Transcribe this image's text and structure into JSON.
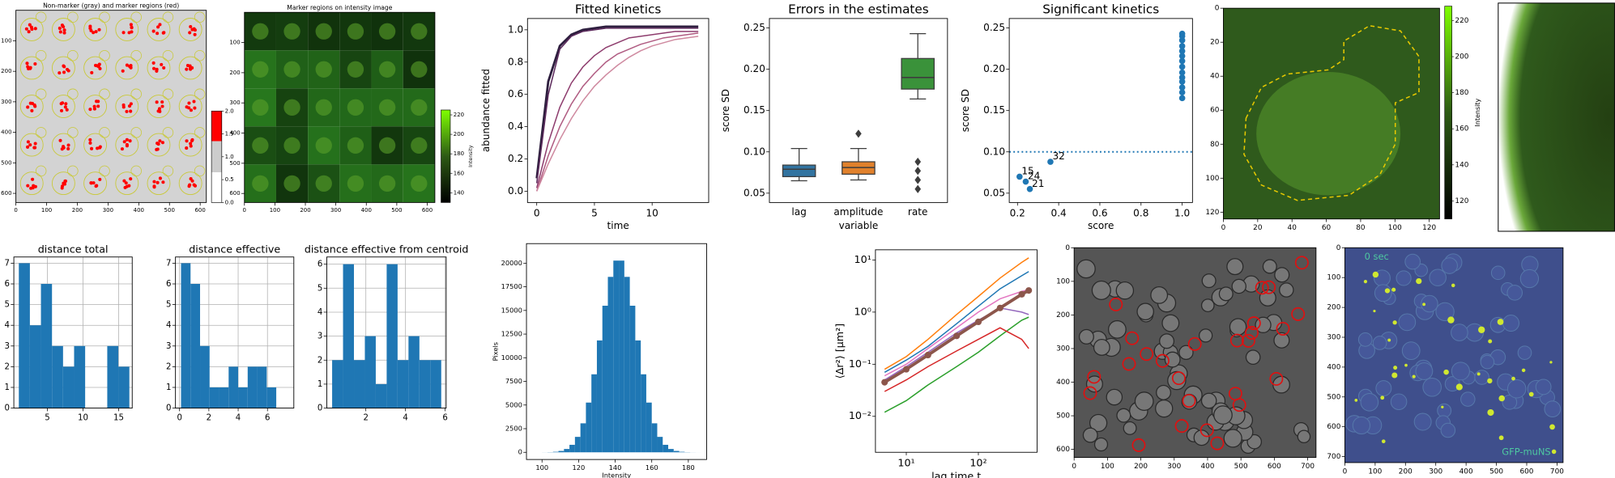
{
  "chart_data": [
    {
      "type": "image",
      "title": "Non-marker (gray) and marker regions (red)",
      "xlim": [
        0,
        620
      ],
      "ylim": [
        630,
        0
      ],
      "xticks": [
        0,
        100,
        200,
        300,
        400,
        500,
        600
      ],
      "yticks": [
        100,
        200,
        300,
        400,
        500,
        600
      ],
      "colorbar": {
        "ylim": [
          0,
          2
        ],
        "yticks": [
          {
            "value": 0,
            "label": "0.0"
          },
          0.5,
          {
            "value": 1,
            "label": "1.0"
          },
          1.5,
          {
            "value": 2,
            "label": "2.0"
          }
        ]
      }
    },
    {
      "type": "image",
      "title": "Marker regions on intensity image",
      "xlim": [
        0,
        625
      ],
      "ylim": [
        630,
        0
      ],
      "xticks": [
        0,
        100,
        200,
        300,
        400,
        500,
        600
      ],
      "yticks": [
        100,
        200,
        300,
        400,
        500,
        600
      ],
      "colorbar": {
        "label": "Intensity",
        "ylim": [
          130,
          225
        ],
        "yticks": [
          140,
          160,
          180,
          200,
          220
        ]
      }
    },
    {
      "type": "line",
      "title": "Fitted kinetics",
      "xlabel": "time",
      "ylabel": "abundance fitted",
      "xlim": [
        -0.8,
        14.9
      ],
      "ylim": [
        -0.07,
        1.07
      ],
      "xticks": [
        0,
        5,
        10
      ],
      "yticks": [
        {
          "value": 0,
          "label": "0.0"
        },
        0.2,
        0.4,
        0.6,
        0.8,
        {
          "value": 1,
          "label": "1.0"
        }
      ],
      "x": [
        0,
        1,
        2,
        3,
        4,
        5,
        6,
        7,
        8,
        9,
        10,
        11,
        12,
        13,
        14
      ],
      "series": [
        {
          "color": "#2d1e3e",
          "values": [
            0.08,
            0.68,
            0.9,
            0.97,
            1.0,
            1.01,
            1.02,
            1.02,
            1.02,
            1.02,
            1.02,
            1.02,
            1.02,
            1.02,
            1.02
          ]
        },
        {
          "color": "#5c2a5c",
          "values": [
            0.05,
            0.6,
            0.88,
            0.96,
            0.99,
            1.0,
            1.01,
            1.01,
            1.01,
            1.01,
            1.01,
            1.01,
            1.01,
            1.01,
            1.01
          ]
        },
        {
          "color": "#8e3d6e",
          "values": [
            0.02,
            0.3,
            0.52,
            0.67,
            0.77,
            0.84,
            0.89,
            0.92,
            0.95,
            0.96,
            0.97,
            0.98,
            0.99,
            0.99,
            0.99
          ]
        },
        {
          "color": "#b05c82",
          "values": [
            0.0,
            0.22,
            0.4,
            0.54,
            0.65,
            0.73,
            0.8,
            0.85,
            0.88,
            0.91,
            0.93,
            0.95,
            0.96,
            0.97,
            0.98
          ]
        },
        {
          "color": "#cf8aa0",
          "values": [
            0.0,
            0.17,
            0.32,
            0.45,
            0.56,
            0.65,
            0.72,
            0.78,
            0.83,
            0.87,
            0.9,
            0.92,
            0.94,
            0.95,
            0.96
          ]
        }
      ]
    },
    {
      "type": "box",
      "title": "Errors in the estimates",
      "xlabel": "variable",
      "ylabel": "score SD",
      "ylim": [
        0.0387,
        0.2614
      ],
      "yticks": [
        0.05,
        {
          "value": 0.1,
          "label": "0.10"
        },
        0.15,
        {
          "value": 0.2,
          "label": "0.20"
        },
        0.25
      ],
      "categories": [
        "lag",
        "amplitude",
        "rate"
      ],
      "colors": [
        "#3274a1",
        "#e1812c",
        "#3a923a"
      ],
      "boxes": [
        {
          "whislo": 0.065,
          "q1": 0.07,
          "med": 0.079,
          "q3": 0.084,
          "whishi": 0.104,
          "fliers": []
        },
        {
          "whislo": 0.066,
          "q1": 0.073,
          "med": 0.081,
          "q3": 0.088,
          "whishi": 0.104,
          "fliers": [
            0.122
          ]
        },
        {
          "whislo": 0.164,
          "q1": 0.176,
          "med": 0.19,
          "q3": 0.213,
          "whishi": 0.243,
          "fliers": [
            0.088,
            0.077,
            0.066,
            0.055
          ]
        }
      ]
    },
    {
      "type": "scatter",
      "title": "Significant kinetics",
      "xlabel": "score",
      "ylabel": "score SD",
      "xlim": [
        0.16,
        1.05
      ],
      "ylim": [
        0.0387,
        0.2614
      ],
      "xticks": [
        0.2,
        0.4,
        0.6,
        0.8,
        {
          "value": 1,
          "label": "1.0"
        }
      ],
      "yticks": [
        0.05,
        {
          "value": 0.1,
          "label": "0.10"
        },
        0.15,
        {
          "value": 0.2,
          "label": "0.20"
        },
        0.25
      ],
      "color": "#1f77b4",
      "hline": 0.1,
      "x": [
        0.21,
        0.24,
        0.26,
        0.36,
        1,
        1,
        1,
        1,
        1,
        1,
        1,
        1,
        1,
        1,
        1,
        1,
        1,
        1
      ],
      "y": [
        0.07,
        0.064,
        0.055,
        0.088,
        0.165,
        0.172,
        0.178,
        0.185,
        0.19,
        0.196,
        0.203,
        0.21,
        0.216,
        0.222,
        0.228,
        0.235,
        0.24,
        0.243
      ],
      "point_labels": [
        "15",
        "24",
        "21",
        "32",
        null,
        null,
        null,
        null,
        null,
        null,
        null,
        null,
        null,
        null,
        null,
        null,
        null,
        null
      ]
    },
    {
      "type": "image",
      "xlim": [
        0,
        126
      ],
      "ylim": [
        124,
        0
      ],
      "xticks": [
        0,
        20,
        40,
        60,
        80,
        100,
        120
      ],
      "yticks": [
        0,
        20,
        40,
        60,
        80,
        100,
        120
      ],
      "colorbar": {
        "label": "Intensity",
        "ylim": [
          110,
          228
        ],
        "yticks": [
          120,
          140,
          160,
          180,
          200,
          220
        ]
      }
    },
    {
      "type": "hist",
      "title": "distance total",
      "grid": true,
      "color": "#1f77b4",
      "xlim": [
        0.3,
        16.9
      ],
      "ylim": [
        0,
        7.3
      ],
      "xticks": [
        5,
        10,
        15
      ],
      "yticks": [
        0,
        1,
        2,
        3,
        4,
        5,
        6,
        7
      ],
      "bins": [
        1,
        2.55,
        4.1,
        5.65,
        7.2,
        8.75,
        10.3,
        11.85,
        13.4,
        14.95,
        16.5
      ],
      "counts": [
        7,
        4,
        6,
        3,
        2,
        3,
        0,
        0,
        3,
        2
      ]
    },
    {
      "type": "hist",
      "title": "distance effective",
      "grid": true,
      "color": "#1f77b4",
      "xlim": [
        -0.28,
        7.8
      ],
      "ylim": [
        0,
        7.3
      ],
      "xticks": [
        0,
        2,
        4,
        6
      ],
      "yticks": [
        0,
        1,
        2,
        3,
        4,
        5,
        6,
        7
      ],
      "bins": [
        0.1,
        0.75,
        1.4,
        2.05,
        2.7,
        3.35,
        4.0,
        4.65,
        5.3,
        5.95,
        6.6
      ],
      "counts": [
        7,
        6,
        3,
        1,
        1,
        2,
        1,
        2,
        2,
        1
      ]
    },
    {
      "type": "hist",
      "title": "distance effective from centroid",
      "grid": true,
      "color": "#1f77b4",
      "xlim": [
        0.03,
        6.05
      ],
      "ylim": [
        0,
        6.3
      ],
      "xticks": [
        2,
        4,
        6
      ],
      "yticks": [
        0,
        1,
        2,
        3,
        4,
        5,
        6
      ],
      "bins": [
        0.3,
        0.85,
        1.4,
        1.95,
        2.5,
        3.05,
        3.6,
        4.15,
        4.7,
        5.25,
        5.8
      ],
      "counts": [
        2,
        6,
        2,
        3,
        1,
        6,
        2,
        3,
        2,
        2
      ]
    },
    {
      "type": "hist",
      "xlabel": "Intensity",
      "ylabel": "Pixels",
      "color": "#1f77b4",
      "xlim": [
        91.5,
        190
      ],
      "ylim": [
        -760,
        22065
      ],
      "xticks": [
        100,
        120,
        140,
        160,
        180
      ],
      "yticks": [
        0,
        2500,
        5000,
        7500,
        10000,
        12500,
        15000,
        17500,
        20000
      ],
      "bins": [
        100,
        103,
        106,
        109,
        112,
        115,
        118,
        121,
        124,
        127,
        130,
        133,
        136,
        139,
        142,
        145,
        148,
        151,
        154,
        157,
        160,
        163,
        166,
        169,
        172,
        175,
        178,
        181,
        184,
        187
      ],
      "counts": [
        6,
        18,
        53,
        144,
        353,
        794,
        1632,
        3065,
        5259,
        8249,
        11830,
        15500,
        18550,
        20270,
        20270,
        18550,
        15500,
        11830,
        8249,
        5259,
        3065,
        1632,
        794,
        353,
        144,
        53,
        18,
        6,
        2
      ]
    },
    {
      "type": "line",
      "xlabel": "lag time t",
      "ylabel": "⟨Δr²⟩ [μm²]",
      "xlog": true,
      "ylog": true,
      "xlim": [
        3.73,
        652
      ],
      "ylim": [
        0.00204,
        15.7
      ],
      "xticks": [
        {
          "value": 10,
          "label": "10¹"
        },
        {
          "value": 100,
          "label": "10²"
        }
      ],
      "yticks": [
        {
          "value": 0.01,
          "label": "10⁻²"
        },
        {
          "value": 0.1,
          "label": "10⁻¹"
        },
        {
          "value": 1,
          "label": "10⁰"
        },
        {
          "value": 10,
          "label": "10¹"
        }
      ],
      "x": [
        5,
        10,
        20,
        50,
        100,
        200,
        400,
        500
      ],
      "series": [
        {
          "color": "#ff7f0e",
          "values": [
            0.08,
            0.14,
            0.3,
            0.9,
            2.0,
            4.5,
            9,
            11
          ]
        },
        {
          "color": "#1f77b4",
          "values": [
            0.07,
            0.12,
            0.22,
            0.6,
            1.3,
            2.8,
            5,
            6
          ]
        },
        {
          "color": "#2ca02c",
          "values": [
            0.012,
            0.02,
            0.04,
            0.09,
            0.17,
            0.35,
            0.7,
            0.8
          ]
        },
        {
          "color": "#d62728",
          "values": [
            0.03,
            0.05,
            0.09,
            0.18,
            0.3,
            0.5,
            0.3,
            0.2
          ]
        },
        {
          "color": "#9467bd",
          "values": [
            0.05,
            0.09,
            0.17,
            0.4,
            0.7,
            1.2,
            1.0,
            0.9
          ]
        },
        {
          "color": "#e377c2",
          "values": [
            0.06,
            0.1,
            0.2,
            0.5,
            1.0,
            1.8,
            2.5,
            2.7
          ]
        },
        {
          "color": "#8c564b",
          "markers": true,
          "values": [
            0.045,
            0.08,
            0.15,
            0.35,
            0.65,
            1.2,
            2.2,
            2.6
          ]
        }
      ]
    },
    {
      "type": "image",
      "xlim": [
        0,
        725
      ],
      "ylim": [
        624,
        0
      ],
      "xticks": [
        0,
        100,
        200,
        300,
        400,
        500,
        600,
        700
      ],
      "yticks": [
        0,
        100,
        200,
        300,
        400,
        500,
        600
      ]
    },
    {
      "type": "image",
      "xlim": [
        0,
        720
      ],
      "ylim": [
        720,
        0
      ],
      "xticks": [
        0,
        100,
        200,
        300,
        400,
        500,
        600,
        700
      ],
      "yticks": [
        0,
        100,
        200,
        300,
        400,
        500,
        600,
        700
      ],
      "annotations": [
        "0 sec",
        "GFP-muNS"
      ]
    }
  ]
}
